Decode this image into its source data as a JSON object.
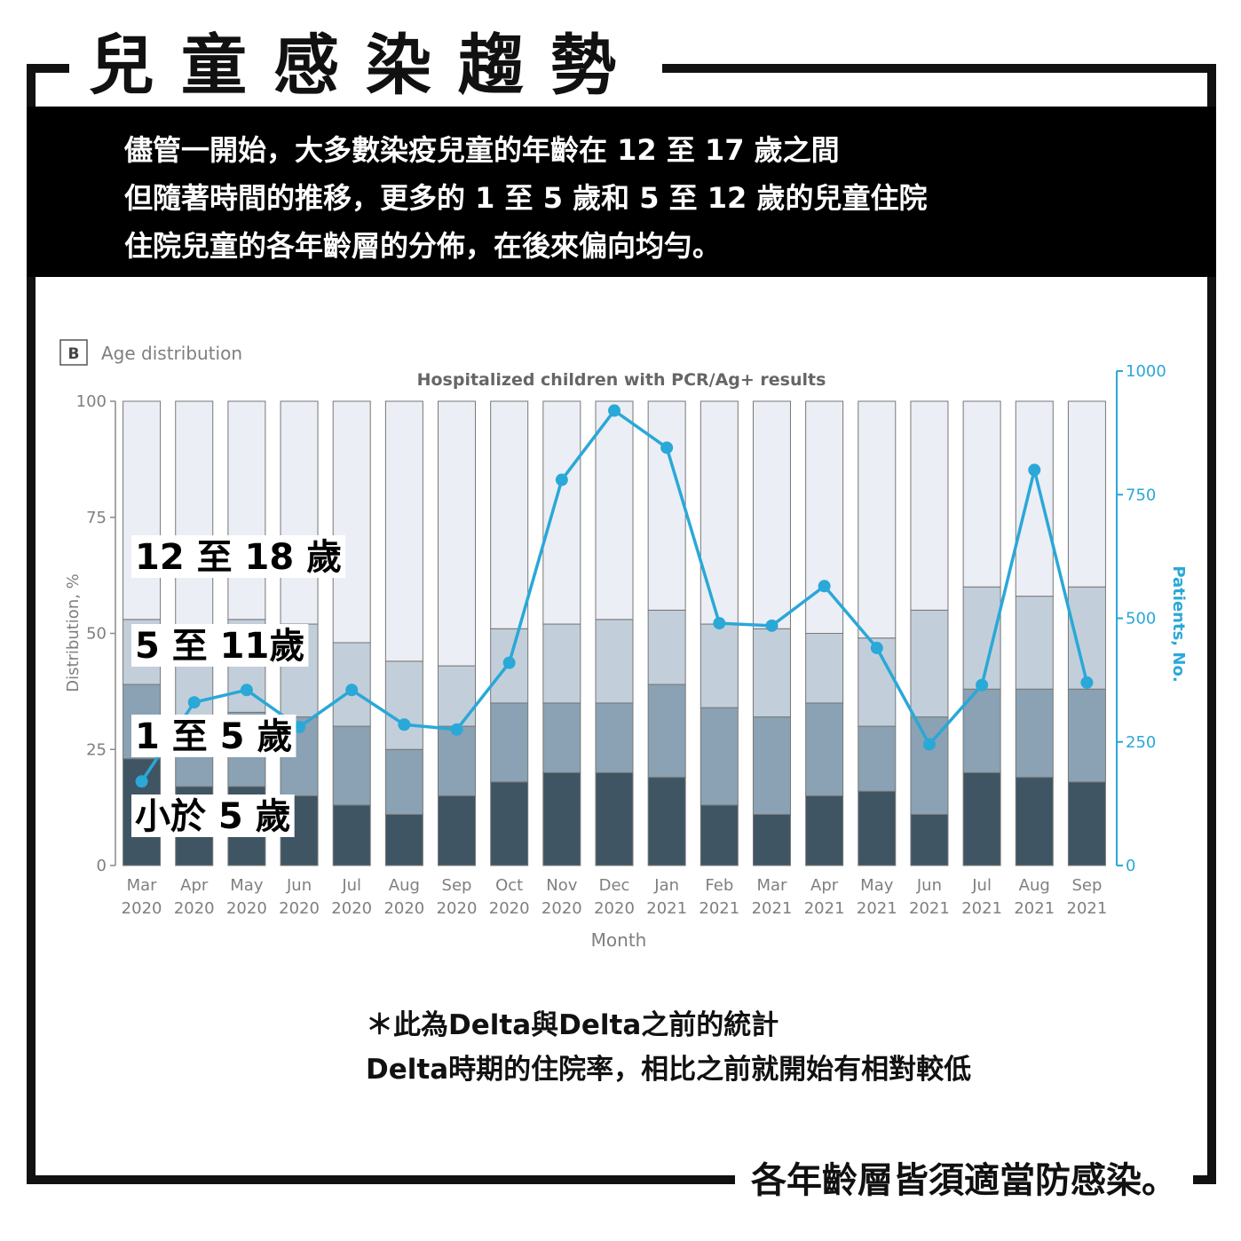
{
  "header": {
    "title": "兒童感染趨勢"
  },
  "intro": {
    "lines": [
      "儘管一開始，大多數染疫兒童的年齡在 12 至 17 歲之間",
      "但隨著時間的推移，更多的 1 至 5 歲和 5 至 12 歲的兒童住院",
      "住院兒童的各年齡層的分佈，在後來偏向均勻。"
    ]
  },
  "chart_data": {
    "type": "bar",
    "panel_letter": "B",
    "panel_label": "Age distribution",
    "title": "Hospitalized children with PCR/Ag+ results",
    "xlabel": "Month",
    "ylabel": "Distribution, %",
    "y2label": "Patients, No.",
    "ylim": [
      0,
      100
    ],
    "y2lim": [
      0,
      1000
    ],
    "yticks": [
      0,
      25,
      50,
      75,
      100
    ],
    "y2ticks": [
      0,
      250,
      500,
      750,
      1000
    ],
    "stacked": true,
    "categories": [
      "Mar 2020",
      "Apr 2020",
      "May 2020",
      "Jun 2020",
      "Jul 2020",
      "Aug 2020",
      "Sep 2020",
      "Oct 2020",
      "Nov 2020",
      "Dec 2020",
      "Jan 2021",
      "Feb 2021",
      "Mar 2021",
      "Apr 2021",
      "May 2021",
      "Jun 2021",
      "Jul 2021",
      "Aug 2021",
      "Sep 2021"
    ],
    "series": [
      {
        "name": "小於 5 歲",
        "color": "#3f5563",
        "values": [
          23,
          17,
          17,
          15,
          13,
          11,
          15,
          18,
          20,
          20,
          19,
          13,
          11,
          15,
          16,
          11,
          20,
          19,
          18
        ]
      },
      {
        "name": "1 至 5 歲",
        "color": "#8aa2b3",
        "values": [
          16,
          15,
          16,
          17,
          17,
          14,
          15,
          17,
          15,
          15,
          20,
          21,
          21,
          20,
          14,
          21,
          18,
          19,
          20
        ]
      },
      {
        "name": "5 至 11歲",
        "color": "#c2cfda",
        "values": [
          14,
          16,
          20,
          20,
          18,
          19,
          13,
          16,
          17,
          18,
          16,
          18,
          19,
          15,
          19,
          23,
          22,
          20,
          22
        ]
      },
      {
        "name": "12 至 18 歲",
        "color": "#eceef5",
        "values": [
          47,
          52,
          47,
          48,
          52,
          56,
          57,
          49,
          48,
          47,
          45,
          48,
          49,
          50,
          51,
          45,
          40,
          42,
          40
        ]
      }
    ],
    "line_series": {
      "name": "Patients, No.",
      "axis": "right",
      "color": "#2aa8d8",
      "values": [
        170,
        330,
        355,
        280,
        355,
        285,
        275,
        410,
        780,
        920,
        845,
        490,
        485,
        565,
        440,
        245,
        365,
        800,
        370
      ]
    },
    "overlay_labels": [
      "12 至 18 歲",
      "5 至 11歲",
      "1 至 5 歲",
      "小於 5 歲"
    ]
  },
  "note": {
    "lines": [
      "＊此為Delta與Delta之前的統計",
      "Delta時期的住院率，相比之前就開始有相對較低"
    ]
  },
  "footer": {
    "text": "各年齡層皆須適當防感染。"
  }
}
